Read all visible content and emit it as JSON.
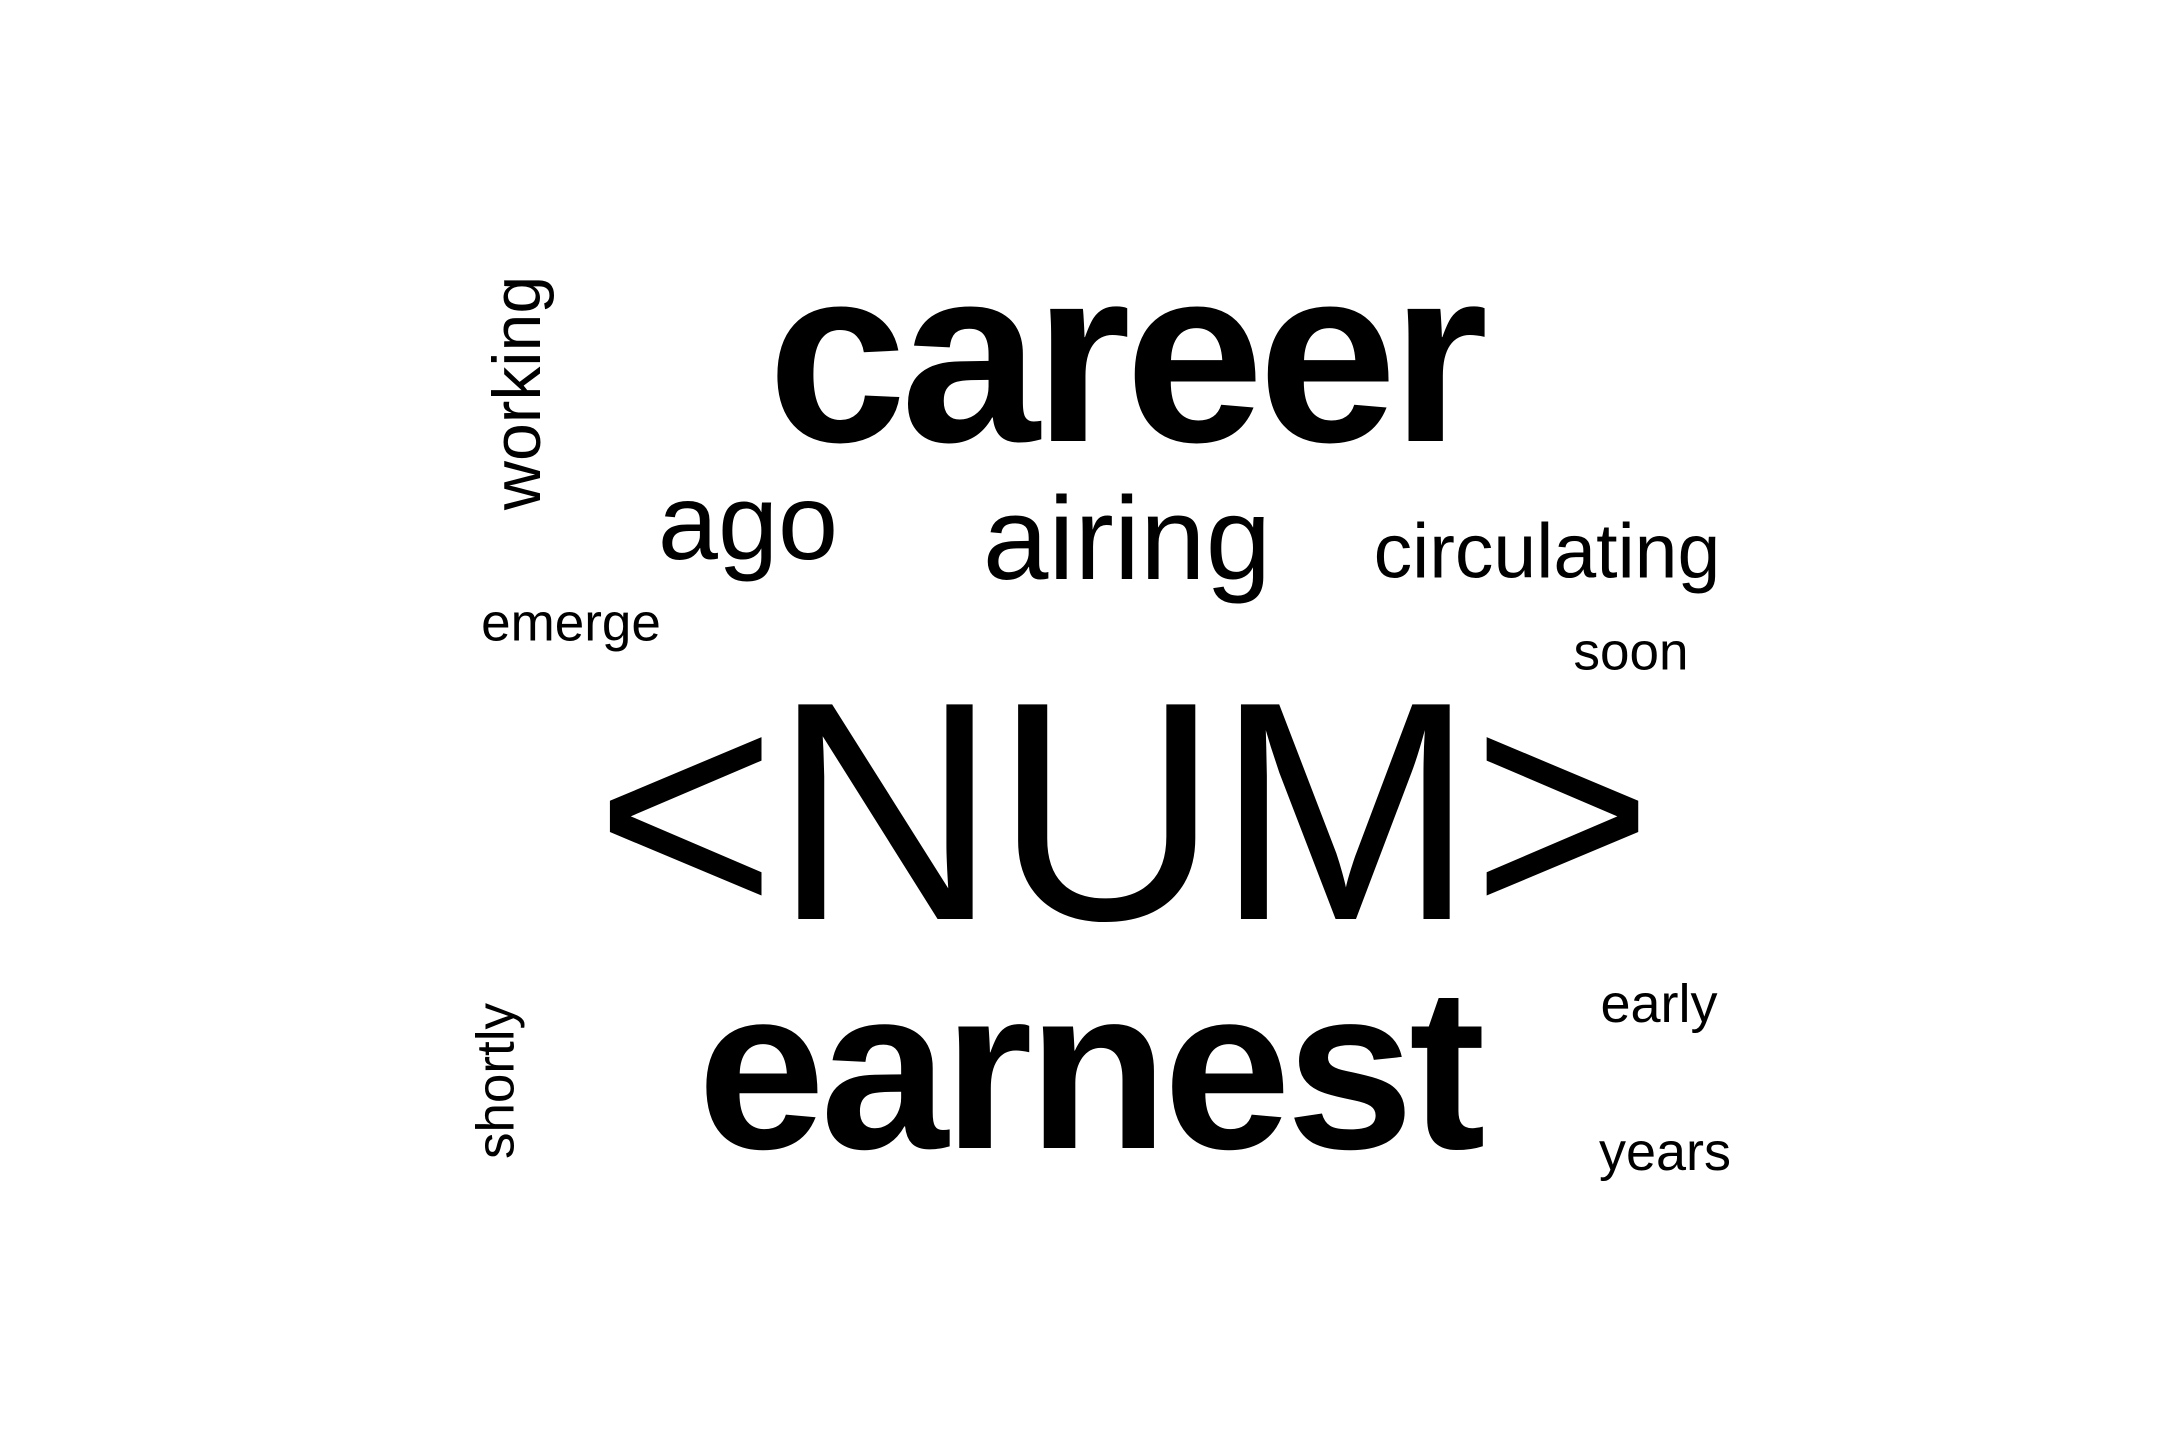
{
  "words": {
    "career": "career",
    "num": "<NUM>",
    "earnest": "earnest",
    "ago": "ago",
    "airing": "airing",
    "circulating": "circulating",
    "soon": "soon",
    "emerge": "emerge",
    "early": "early",
    "years": "years",
    "working": "working",
    "shortly": "shortly"
  },
  "colors": {
    "text": "#000000",
    "background": "#ffffff"
  }
}
